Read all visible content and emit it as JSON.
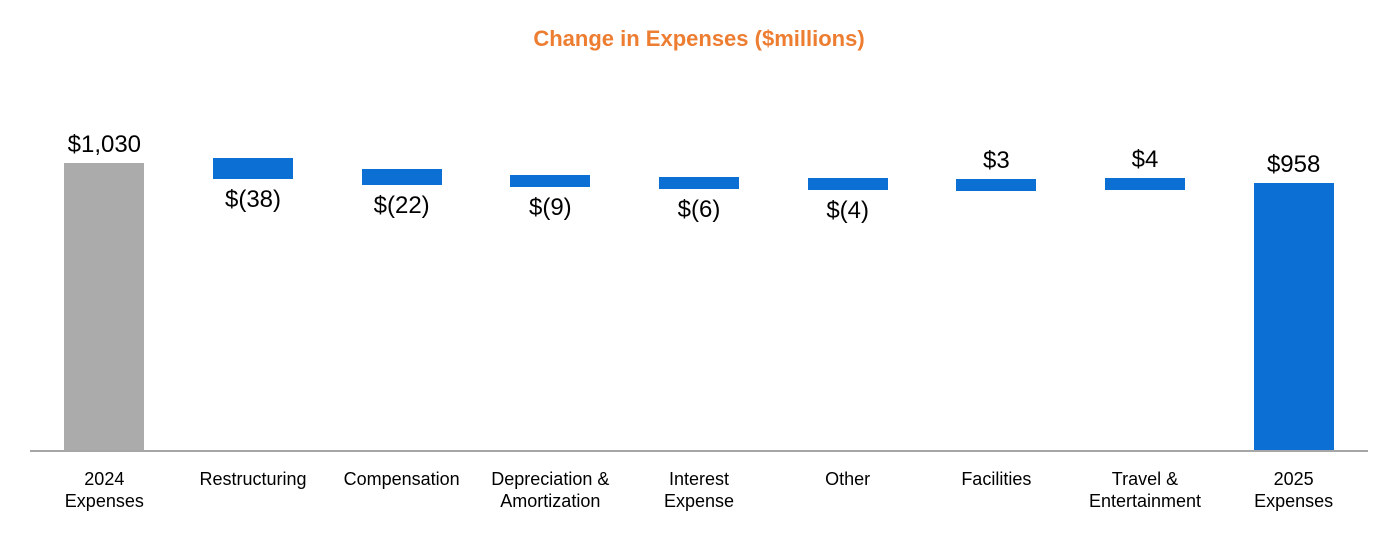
{
  "title": "Change in Expenses ($millions)",
  "colors": {
    "title_text": "#ED7D31",
    "start_total_bar": "#ABABAB",
    "change_bar": "#0C6FD3",
    "end_total_bar": "#0C6FD3",
    "axis_line": "#A6A6A6",
    "label_text": "#000000",
    "background": "#FFFFFF"
  },
  "chart_data": {
    "type": "bar",
    "subtype": "waterfall",
    "title": "Change in Expenses ($millions)",
    "y_axis_visible": false,
    "x_axis_line": true,
    "grid": false,
    "legend": "none",
    "connector_lines": false,
    "ylim": [
      0,
      1100
    ],
    "categories": [
      "2024 Expenses",
      "Restructuring",
      "Compensation",
      "Depreciation & Amortization",
      "Interest Expense",
      "Other",
      "Facilities",
      "Travel & Entertainment",
      "2025 Expenses"
    ],
    "bars": [
      {
        "category": "2024 Expenses",
        "category_lines": [
          "2024",
          "Expenses"
        ],
        "role": "total-start",
        "value": 1030,
        "data_label": "$1,030",
        "label_position": "above"
      },
      {
        "category": "Restructuring",
        "category_lines": [
          "Restructuring"
        ],
        "role": "decrease",
        "value": -38,
        "data_label": "$(38)",
        "label_position": "below"
      },
      {
        "category": "Compensation",
        "category_lines": [
          "Compensation"
        ],
        "role": "decrease",
        "value": -22,
        "data_label": "$(22)",
        "label_position": "below"
      },
      {
        "category": "Depreciation & Amortization",
        "category_lines": [
          "Depreciation &",
          "Amortization"
        ],
        "role": "decrease",
        "value": -9,
        "data_label": "$(9)",
        "label_position": "below"
      },
      {
        "category": "Interest Expense",
        "category_lines": [
          "Interest",
          "Expense"
        ],
        "role": "decrease",
        "value": -6,
        "data_label": "$(6)",
        "label_position": "below"
      },
      {
        "category": "Other",
        "category_lines": [
          "Other"
        ],
        "role": "decrease",
        "value": -4,
        "data_label": "$(4)",
        "label_position": "below"
      },
      {
        "category": "Facilities",
        "category_lines": [
          "Facilities"
        ],
        "role": "increase",
        "value": 3,
        "data_label": "$3",
        "label_position": "above"
      },
      {
        "category": "Travel & Entertainment",
        "category_lines": [
          "Travel &",
          "Entertainment"
        ],
        "role": "increase",
        "value": 4,
        "data_label": "$4",
        "label_position": "above"
      },
      {
        "category": "2025 Expenses",
        "category_lines": [
          "2025",
          "Expenses"
        ],
        "role": "total-end",
        "value": 958,
        "data_label": "$958",
        "label_position": "above"
      }
    ]
  }
}
